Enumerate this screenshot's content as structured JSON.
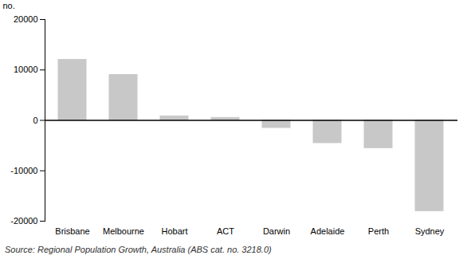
{
  "chart_data": {
    "type": "bar",
    "categories": [
      "Brisbane",
      "Melbourne",
      "Hobart",
      "ACT",
      "Darwin",
      "Adelaide",
      "Perth",
      "Sydney"
    ],
    "values": [
      12000,
      9000,
      800,
      500,
      -1500,
      -4500,
      -5500,
      -18000
    ],
    "color": "#c8c8c8",
    "ylim": [
      -20000,
      20000
    ],
    "yticks": [
      -20000,
      -10000,
      0,
      10000,
      20000
    ],
    "ylabel": "no.",
    "source": "Source: Regional Population Growth, Australia (ABS cat.  no.  3218.0)",
    "grid": false
  }
}
